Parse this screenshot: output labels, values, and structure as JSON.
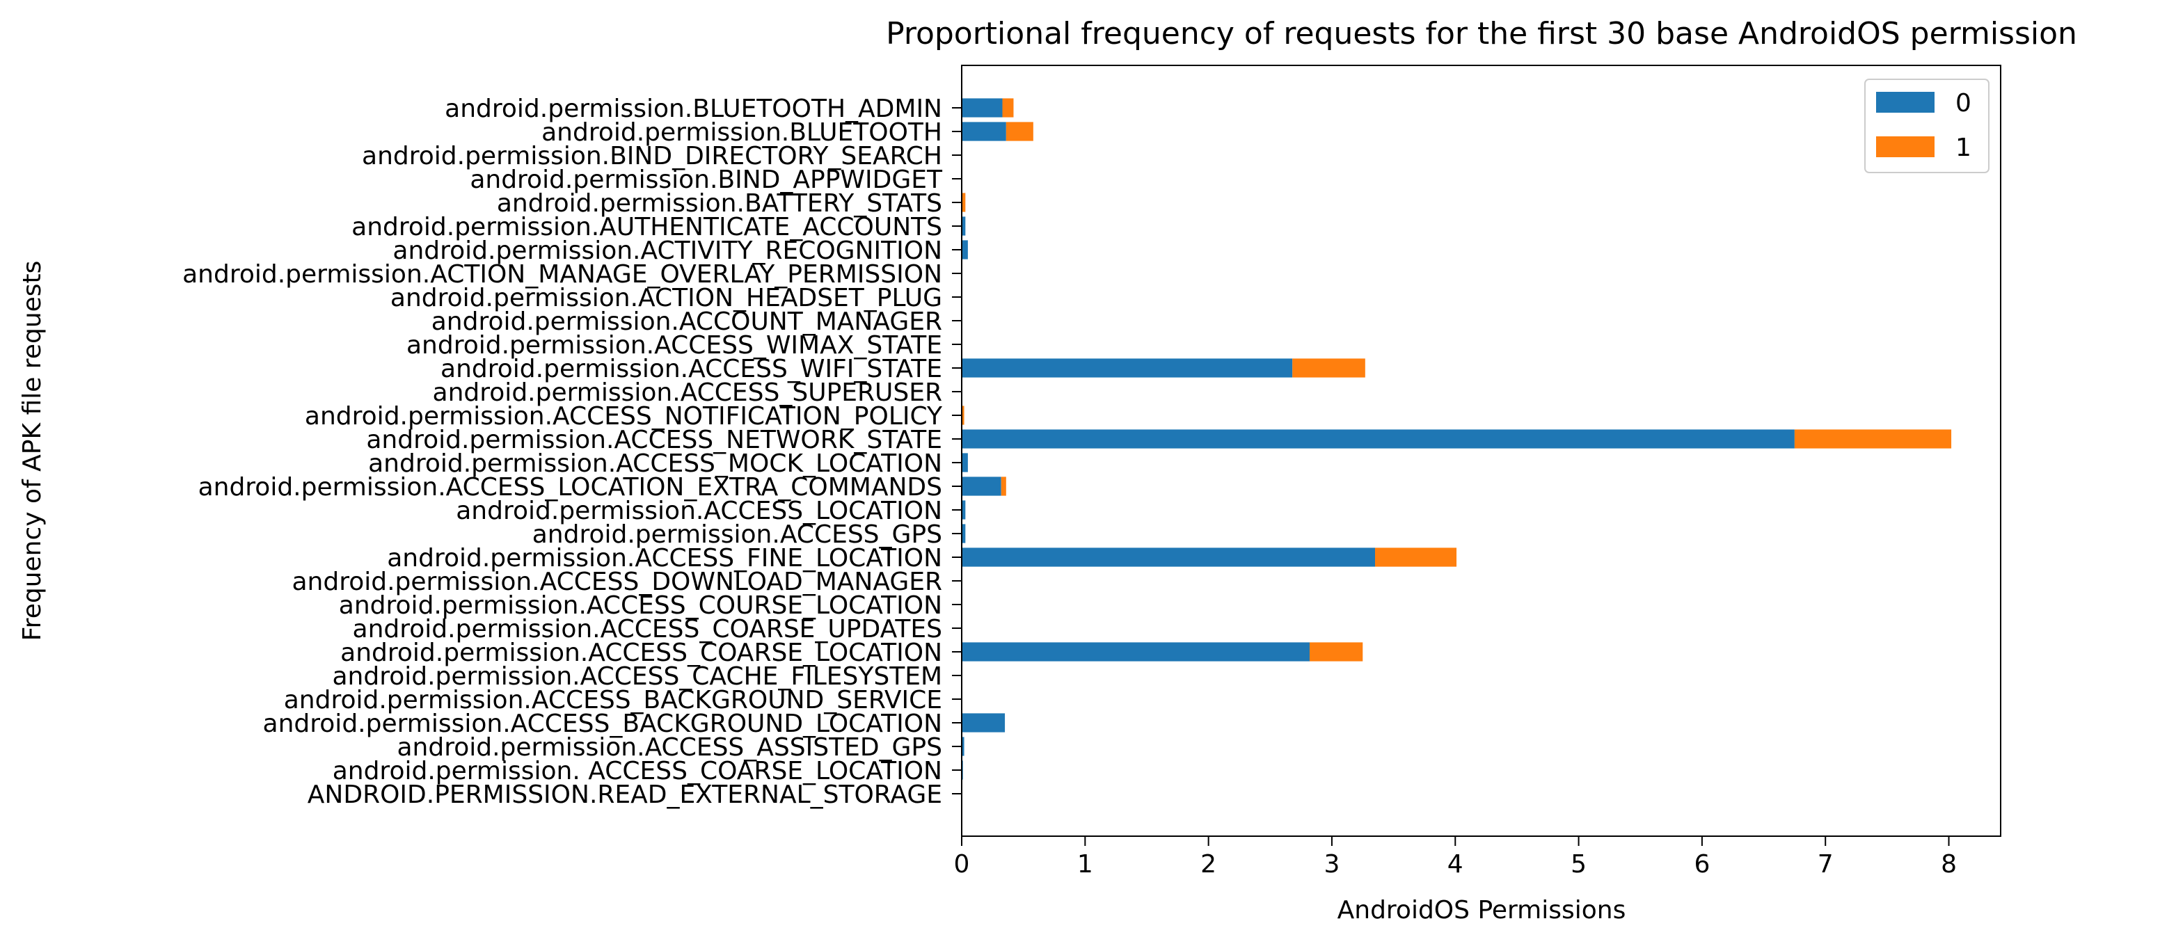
{
  "chart_data": {
    "type": "bar",
    "orientation": "horizontal",
    "stacked": true,
    "title": "Proportional frequency of requests for the first 30 base AndroidOS permission",
    "xlabel": "AndroidOS Permissions",
    "ylabel": "Frequency of APK file requests",
    "xlim": [
      0,
      8.42
    ],
    "xticks": [
      0,
      1,
      2,
      3,
      4,
      5,
      6,
      7,
      8
    ],
    "grid": false,
    "legend_position": "top-right",
    "categories": [
      "ANDROID.PERMISSION.READ_EXTERNAL_STORAGE",
      "android.permission. ACCESS_COARSE_LOCATION",
      "android.permission.ACCESS_ASSISTED_GPS",
      "android.permission.ACCESS_BACKGROUND_LOCATION",
      "android.permission.ACCESS_BACKGROUND_SERVICE",
      "android.permission.ACCESS_CACHE_FILESYSTEM",
      "android.permission.ACCESS_COARSE_LOCATION",
      "android.permission.ACCESS_COARSE_UPDATES",
      "android.permission.ACCESS_COURSE_LOCATION",
      "android.permission.ACCESS_DOWNLOAD_MANAGER",
      "android.permission.ACCESS_FINE_LOCATION",
      "android.permission.ACCESS_GPS",
      "android.permission.ACCESS_LOCATION",
      "android.permission.ACCESS_LOCATION_EXTRA_COMMANDS",
      "android.permission.ACCESS_MOCK_LOCATION",
      "android.permission.ACCESS_NETWORK_STATE",
      "android.permission.ACCESS_NOTIFICATION_POLICY",
      "android.permission.ACCESS_SUPERUSER",
      "android.permission.ACCESS_WIFI_STATE",
      "android.permission.ACCESS_WIMAX_STATE",
      "android.permission.ACCOUNT_MANAGER",
      "android.permission.ACTION_HEADSET_PLUG",
      "android.permission.ACTION_MANAGE_OVERLAY_PERMISSION",
      "android.permission.ACTIVITY_RECOGNITION",
      "android.permission.AUTHENTICATE_ACCOUNTS",
      "android.permission.BATTERY_STATS",
      "android.permission.BIND_APPWIDGET",
      "android.permission.BIND_DIRECTORY_SEARCH",
      "android.permission.BLUETOOTH",
      "android.permission.BLUETOOTH_ADMIN"
    ],
    "series": [
      {
        "name": "0",
        "color": "#1f77b4",
        "values": [
          0.0,
          0.01,
          0.02,
          0.35,
          0.0,
          0.0,
          2.82,
          0.0,
          0.0,
          0.0,
          3.35,
          0.03,
          0.03,
          0.32,
          0.05,
          6.75,
          0.0,
          0.0,
          2.68,
          0.0,
          0.0,
          0.0,
          0.0,
          0.05,
          0.03,
          0.0,
          0.0,
          0.0,
          0.36,
          0.33
        ]
      },
      {
        "name": "1",
        "color": "#ff7f0e",
        "values": [
          0.0,
          0.0,
          0.0,
          0.0,
          0.0,
          0.0,
          0.43,
          0.0,
          0.0,
          0.0,
          0.66,
          0.0,
          0.0,
          0.04,
          0.0,
          1.27,
          0.02,
          0.0,
          0.59,
          0.0,
          0.0,
          0.0,
          0.0,
          0.0,
          0.0,
          0.03,
          0.0,
          0.0,
          0.22,
          0.09
        ]
      }
    ]
  }
}
